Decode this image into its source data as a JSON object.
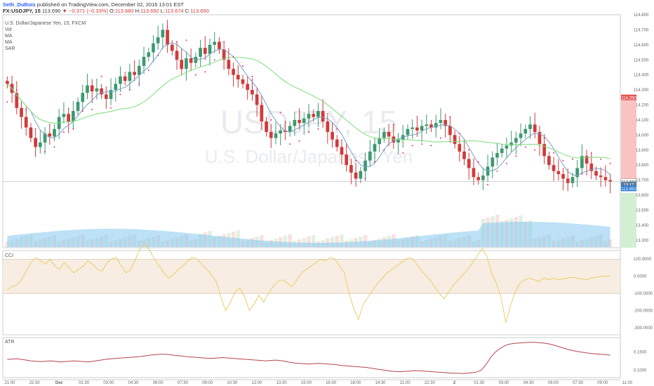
{
  "header": {
    "author": "Seth_DuBois",
    "published": "published on TradingView.com, December 02, 2016 13:01 EST",
    "symbol": "FX:USDJPY, 15",
    "last": "113.690",
    "change": "−0.371 (−0.33%)",
    "o_label": "O:",
    "o": "113.680",
    "h_label": "H:",
    "h": "113.692",
    "l_label": "L:",
    "l": "113.674",
    "c_label": "C:",
    "c": "113.690",
    "arrow": "▼"
  },
  "legend": {
    "title": "U.S. Dollar/Japanese Yen, 15, FXCM",
    "items": [
      "Vol",
      "MA",
      "MA",
      "SAR"
    ]
  },
  "watermark": {
    "symbol": "USDJPY, 15",
    "name": "U.S. Dollar/Japanese Yen"
  },
  "pane_labels": {
    "cci": "CCI",
    "atr": "ATR"
  },
  "price_axis": {
    "ticks": [
      "114.800",
      "114.700",
      "114.600",
      "114.500",
      "114.400",
      "114.300",
      "114.200",
      "114.100",
      "114.000",
      "113.900",
      "113.800",
      "113.700",
      "113.600",
      "113.500",
      "113.400",
      "113.300"
    ],
    "tags": [
      {
        "text": "114.250",
        "value": 114.25,
        "color": "#e35454"
      },
      {
        "text": "113.690",
        "value": 113.69,
        "color": "#ffffff"
      },
      {
        "text": "13:17",
        "value": 113.67,
        "color": "#5a7b9a"
      },
      {
        "text": "113.650",
        "value": 113.645,
        "color": "#2d7ad6"
      }
    ]
  },
  "cci_axis": {
    "ticks": [
      "100.0000",
      "0.0000",
      "-100.0000",
      "-200.0000",
      "-300.0000"
    ]
  },
  "atr_axis": {
    "ticks": [
      "0.1500",
      "0.1000"
    ]
  },
  "time_axis": [
    "21:00",
    "22:30",
    "Dec",
    "01:30",
    "03:00",
    "04:30",
    "06:00",
    "07:30",
    "09:00",
    "10:30",
    "12:00",
    "13:30",
    "15:00",
    "16:30",
    "18:00",
    "19:30",
    "21:00",
    "22:30",
    "2",
    "01:30",
    "03:00",
    "04:30",
    "06:00",
    "07:30",
    "09:00",
    "11:00"
  ],
  "colors": {
    "up": "#3d9970",
    "down": "#d03a3a",
    "ma_fast": "#7a9ec4",
    "ma_slow": "#7bdc7b",
    "sar": "#e0307a",
    "cci": "#e8c95a",
    "atr": "#b8434f",
    "volume_ma": "#87c9ee",
    "band": "#f5e6d6"
  },
  "chart_data": [
    {
      "type": "candlestick",
      "title": "U.S. Dollar/Japanese Yen, 15, FXCM",
      "ylim": [
        113.25,
        114.8
      ],
      "close": [
        114.34,
        114.28,
        114.18,
        114.12,
        114.05,
        113.98,
        113.92,
        113.95,
        114.01,
        113.99,
        114.04,
        114.12,
        114.14,
        114.09,
        114.16,
        114.22,
        114.28,
        114.33,
        114.29,
        114.31,
        114.27,
        114.24,
        114.3,
        114.34,
        114.39,
        114.36,
        114.42,
        114.4,
        114.46,
        114.52,
        114.55,
        114.61,
        114.65,
        114.7,
        114.6,
        114.56,
        114.5,
        114.44,
        114.51,
        114.48,
        114.52,
        114.58,
        114.54,
        114.6,
        114.62,
        114.57,
        114.5,
        114.44,
        114.4,
        114.37,
        114.34,
        114.3,
        114.27,
        114.2,
        114.09,
        114.02,
        113.98,
        114.01,
        114.03,
        114.02,
        114.06,
        114.1,
        114.08,
        114.11,
        114.14,
        114.12,
        114.16,
        114.09,
        114.02,
        113.97,
        113.92,
        113.87,
        113.8,
        113.75,
        113.71,
        113.76,
        113.83,
        113.89,
        113.94,
        113.98,
        114.02,
        113.99,
        113.95,
        113.97,
        114.0,
        114.04,
        114.05,
        114.03,
        114.06,
        114.07,
        114.05,
        114.08,
        114.1,
        114.06,
        114.0,
        113.94,
        113.89,
        113.84,
        113.78,
        113.72,
        113.7,
        113.73,
        113.79,
        113.85,
        113.88,
        113.91,
        113.93,
        113.95,
        113.98,
        114.01,
        114.04,
        114.07,
        114.02,
        113.94,
        113.86,
        113.8,
        113.76,
        113.74,
        113.71,
        113.68,
        113.72,
        113.78,
        113.86,
        113.81,
        113.76,
        113.73,
        113.72,
        113.7,
        113.69
      ]
    },
    {
      "type": "line",
      "title": "CCI",
      "ylim": [
        -340,
        150
      ],
      "values": [
        -80,
        -60,
        -50,
        -20,
        30,
        80,
        110,
        90,
        70,
        100,
        60,
        40,
        80,
        50,
        20,
        40,
        60,
        90,
        70,
        40,
        30,
        80,
        100,
        110,
        60,
        20,
        40,
        100,
        160,
        190,
        150,
        100,
        60,
        20,
        -10,
        10,
        40,
        60,
        90,
        110,
        100,
        70,
        40,
        10,
        -30,
        -120,
        -200,
        -150,
        -90,
        -70,
        -120,
        -200,
        -160,
        -110,
        -150,
        -100,
        -60,
        -30,
        -20,
        -40,
        -60,
        -20,
        20,
        40,
        60,
        80,
        100,
        90,
        110,
        100,
        60,
        20,
        -100,
        -190,
        -250,
        -160,
        -120,
        -80,
        -40,
        -10,
        20,
        40,
        60,
        80,
        100,
        110,
        80,
        40,
        10,
        -20,
        -60,
        -100,
        -130,
        -90,
        -50,
        -20,
        10,
        40,
        80,
        120,
        160,
        120,
        20,
        -40,
        -120,
        -270,
        -170,
        -90,
        -40,
        -20,
        -10,
        -20,
        -30,
        -10,
        -20,
        -10,
        -20,
        -15,
        -10,
        -5,
        -10,
        -15,
        -20,
        -10,
        -5,
        0,
        0,
        0
      ]
    },
    {
      "type": "line",
      "title": "ATR",
      "ylim": [
        0.08,
        0.19
      ],
      "values": [
        0.13,
        0.131,
        0.132,
        0.13,
        0.128,
        0.126,
        0.125,
        0.124,
        0.125,
        0.126,
        0.125,
        0.123,
        0.124,
        0.125,
        0.126,
        0.125,
        0.124,
        0.123,
        0.125,
        0.127,
        0.129,
        0.131,
        0.132,
        0.133,
        0.134,
        0.135,
        0.136,
        0.137,
        0.138,
        0.14,
        0.142,
        0.143,
        0.144,
        0.144,
        0.143,
        0.141,
        0.14,
        0.138,
        0.137,
        0.136,
        0.135,
        0.134,
        0.133,
        0.133,
        0.134,
        0.135,
        0.134,
        0.133,
        0.132,
        0.131,
        0.13,
        0.129,
        0.128,
        0.127,
        0.126,
        0.127,
        0.128,
        0.127,
        0.125,
        0.122,
        0.12,
        0.119,
        0.118,
        0.117,
        0.118,
        0.119,
        0.118,
        0.117,
        0.116,
        0.115,
        0.113,
        0.112,
        0.111,
        0.11,
        0.109,
        0.108,
        0.106,
        0.104,
        0.102,
        0.1,
        0.098,
        0.097,
        0.096,
        0.097,
        0.098,
        0.099,
        0.099,
        0.098,
        0.097,
        0.096,
        0.095,
        0.094,
        0.093,
        0.092,
        0.092,
        0.091,
        0.092,
        0.093,
        0.095,
        0.1,
        0.115,
        0.135,
        0.15,
        0.16,
        0.168,
        0.172,
        0.174,
        0.175,
        0.176,
        0.177,
        0.177,
        0.176,
        0.175,
        0.173,
        0.17,
        0.166,
        0.162,
        0.158,
        0.155,
        0.152,
        0.15,
        0.148,
        0.146,
        0.145,
        0.144,
        0.143,
        0.142
      ]
    }
  ]
}
